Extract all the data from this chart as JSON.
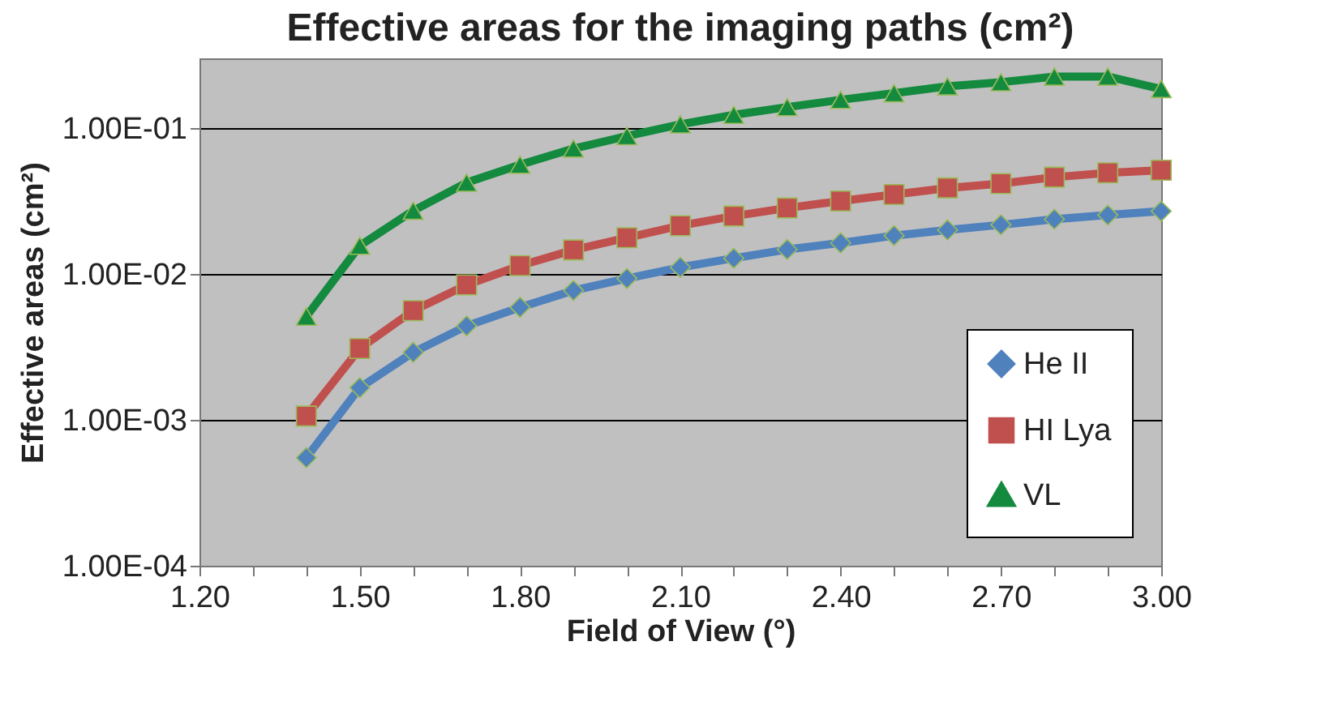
{
  "chart_data": {
    "type": "line",
    "title": "Effective areas for the imaging paths (cm²)",
    "xlabel": "Field of View (°)",
    "ylabel": "Effective areas (cm²)",
    "x": [
      1.4,
      1.5,
      1.6,
      1.7,
      1.8,
      1.9,
      2.0,
      2.1,
      2.2,
      2.3,
      2.4,
      2.5,
      2.6,
      2.7,
      2.8,
      2.9,
      3.0
    ],
    "series": [
      {
        "name": "He II",
        "color": "#4f81bd",
        "marker": "diamond",
        "values": [
          0.00055,
          0.00166,
          0.0029,
          0.0044,
          0.0059,
          0.0077,
          0.0093,
          0.0111,
          0.0128,
          0.0147,
          0.0163,
          0.0183,
          0.02,
          0.0217,
          0.0237,
          0.0253,
          0.0269
        ]
      },
      {
        "name": "HI Lya",
        "color": "#c0504d",
        "marker": "square",
        "values": [
          0.00106,
          0.00308,
          0.0056,
          0.0084,
          0.0114,
          0.0146,
          0.0177,
          0.0214,
          0.0249,
          0.0283,
          0.0316,
          0.035,
          0.0388,
          0.0416,
          0.046,
          0.0493,
          0.0514
        ]
      },
      {
        "name": "VL",
        "color": "#138a3e",
        "marker": "triangle",
        "values": [
          0.0051,
          0.0156,
          0.0271,
          0.0422,
          0.056,
          0.0723,
          0.088,
          0.106,
          0.123,
          0.139,
          0.156,
          0.173,
          0.193,
          0.206,
          0.225,
          0.225,
          0.185
        ]
      }
    ],
    "log": "y",
    "ylim": [
      0.0001,
      0.3
    ],
    "yticks": [
      {
        "value": 0.0001,
        "label": "1.00E-04"
      },
      {
        "value": 0.001,
        "label": "1.00E-03"
      },
      {
        "value": 0.01,
        "label": "1.00E-02"
      },
      {
        "value": 0.1,
        "label": "1.00E-01"
      }
    ],
    "xlim": [
      1.2,
      3.0
    ],
    "xticks": [
      {
        "value": 1.2,
        "label": "1.20"
      },
      {
        "value": 1.3,
        "label": null
      },
      {
        "value": 1.4,
        "label": null
      },
      {
        "value": 1.5,
        "label": "1.50"
      },
      {
        "value": 1.6,
        "label": null
      },
      {
        "value": 1.7,
        "label": null
      },
      {
        "value": 1.8,
        "label": "1.80"
      },
      {
        "value": 1.9,
        "label": null
      },
      {
        "value": 2.0,
        "label": null
      },
      {
        "value": 2.1,
        "label": "2.10"
      },
      {
        "value": 2.2,
        "label": null
      },
      {
        "value": 2.3,
        "label": null
      },
      {
        "value": 2.4,
        "label": "2.40"
      },
      {
        "value": 2.5,
        "label": null
      },
      {
        "value": 2.6,
        "label": null
      },
      {
        "value": 2.7,
        "label": "2.70"
      },
      {
        "value": 2.8,
        "label": null
      },
      {
        "value": 2.9,
        "label": null
      },
      {
        "value": 3.0,
        "label": "3.00"
      }
    ],
    "grid": "y",
    "legend": "bottom right",
    "line_style": "solid"
  }
}
